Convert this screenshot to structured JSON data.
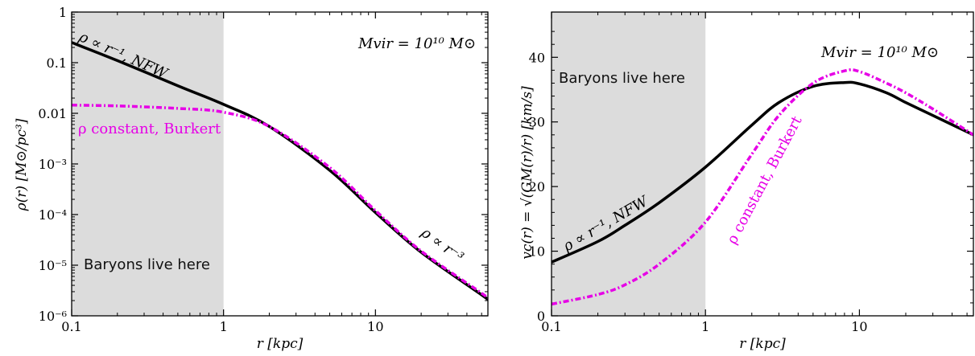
{
  "chart_data": [
    {
      "type": "line",
      "xscale": "log",
      "yscale": "log",
      "xlim": [
        0.1,
        55
      ],
      "ylim": [
        1e-06,
        1
      ],
      "xlabel": "r [kpc]",
      "ylabel": "ρ(r) [M⊙/pc³]",
      "xticks": [
        "0.1",
        "1",
        "10"
      ],
      "yticks": [
        "1",
        "0.1",
        "0.01",
        "10⁻³",
        "10⁻⁴",
        "10⁻⁵",
        "10⁻⁶"
      ],
      "shaded_region": {
        "x": [
          0.1,
          1
        ],
        "color": "#dcdcdc",
        "label": "Baryons live here"
      },
      "annotations": {
        "nfw": "ρ ∝ r⁻¹, NFW",
        "burkert": "ρ constant, Burkert",
        "tail": "ρ ∝ r⁻³",
        "mass": "Mvir = 10¹⁰ M⊙"
      },
      "series": [
        {
          "name": "NFW",
          "color": "#000000",
          "style": "solid",
          "x": [
            0.1,
            0.2,
            0.5,
            1,
            2,
            5,
            10,
            20,
            50,
            55
          ],
          "y": [
            0.25,
            0.11,
            0.035,
            0.015,
            0.0055,
            0.00075,
            0.00011,
            1.8e-05,
            2.6e-06,
            2.1e-06
          ]
        },
        {
          "name": "Burkert",
          "color": "#e600e6",
          "style": "dashdot",
          "x": [
            0.1,
            0.2,
            0.5,
            1,
            2,
            5,
            10,
            20,
            50,
            55
          ],
          "y": [
            0.0145,
            0.014,
            0.0125,
            0.0105,
            0.0055,
            0.00085,
            0.00012,
            1.9e-05,
            2.8e-06,
            2.2e-06
          ]
        }
      ]
    },
    {
      "type": "line",
      "xscale": "log",
      "yscale": "linear",
      "xlim": [
        0.1,
        55
      ],
      "ylim": [
        0,
        47
      ],
      "xlabel": "r [kpc]",
      "ylabel": "vc(r) = √(GM(r)/r) [km/s]",
      "xticks": [
        "0.1",
        "1",
        "10"
      ],
      "yticks": [
        "0",
        "10",
        "20",
        "30",
        "40"
      ],
      "shaded_region": {
        "x": [
          0.1,
          1
        ],
        "color": "#dcdcdc",
        "label": "Baryons live here"
      },
      "annotations": {
        "nfw": "ρ ∝ r⁻¹, NFW",
        "burkert": "ρ constant, Burkert",
        "mass": "Mvir = 10¹⁰ M⊙"
      },
      "series": [
        {
          "name": "NFW",
          "color": "#000000",
          "style": "solid",
          "x": [
            0.1,
            0.2,
            0.3,
            0.5,
            1,
            2,
            3,
            5,
            8,
            10,
            15,
            20,
            30,
            55
          ],
          "y": [
            8.3,
            11.5,
            14,
            17.5,
            23,
            29.5,
            33,
            35.5,
            36.1,
            35.9,
            34.5,
            33,
            31,
            28
          ]
        },
        {
          "name": "Burkert",
          "color": "#e600e6",
          "style": "dashdot",
          "x": [
            0.1,
            0.2,
            0.3,
            0.5,
            1,
            2,
            3,
            5,
            8,
            10,
            15,
            20,
            30,
            55
          ],
          "y": [
            1.8,
            3.3,
            4.8,
            8,
            14.5,
            25,
            31,
            36,
            37.9,
            37.8,
            36,
            34.5,
            32,
            28
          ]
        }
      ]
    }
  ]
}
